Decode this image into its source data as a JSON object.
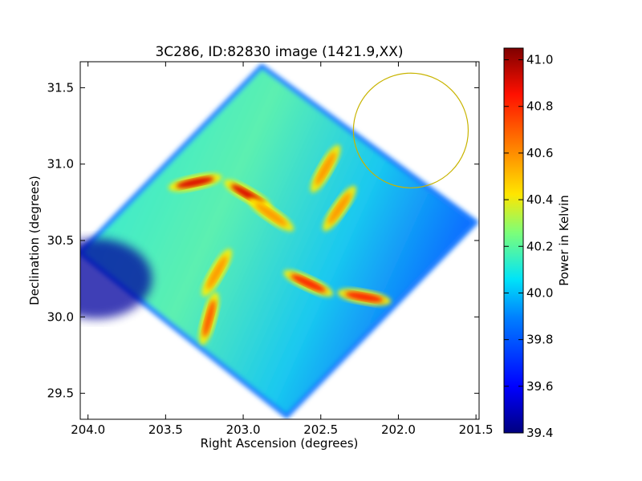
{
  "chart_data": {
    "type": "heatmap",
    "title": "3C286, ID:82830 image (1421.9,XX)",
    "xlabel": "Right Ascension (degrees)",
    "ylabel": "Declination (degrees)",
    "xlim": [
      204.05,
      201.48
    ],
    "ylim": [
      29.33,
      31.67
    ],
    "x_ticks": [
      "204.0",
      "203.5",
      "203.0",
      "202.5",
      "202.0",
      "201.5"
    ],
    "x_tick_values": [
      204.0,
      203.5,
      203.0,
      202.5,
      202.0,
      201.5
    ],
    "y_ticks": [
      "29.5",
      "30.0",
      "30.5",
      "31.0",
      "31.5"
    ],
    "y_tick_values": [
      29.5,
      30.0,
      30.5,
      31.0,
      31.5
    ],
    "colorbar": {
      "label": "Power in Kelvin",
      "ticks": [
        "39.4",
        "39.6",
        "39.8",
        "40.0",
        "40.2",
        "40.4",
        "40.6",
        "40.8",
        "41.0"
      ],
      "tick_values": [
        39.4,
        39.6,
        39.8,
        40.0,
        40.2,
        40.4,
        40.6,
        40.8,
        41.0
      ],
      "range": [
        39.4,
        41.05
      ]
    },
    "footprint": {
      "corners_radec": [
        [
          202.88,
          31.64
        ],
        [
          201.5,
          30.62
        ],
        [
          202.72,
          29.35
        ],
        [
          204.05,
          30.42
        ]
      ],
      "typical_value": 40.0
    },
    "hotspots": [
      {
        "ra": 203.31,
        "dec": 30.88,
        "value": 40.9
      },
      {
        "ra": 202.97,
        "dec": 30.8,
        "value": 40.9
      },
      {
        "ra": 202.82,
        "dec": 30.67,
        "value": 40.6
      },
      {
        "ra": 202.47,
        "dec": 30.97,
        "value": 40.6
      },
      {
        "ra": 202.38,
        "dec": 30.71,
        "value": 40.6
      },
      {
        "ra": 203.17,
        "dec": 30.29,
        "value": 40.6
      },
      {
        "ra": 203.22,
        "dec": 29.99,
        "value": 40.7
      },
      {
        "ra": 202.58,
        "dec": 30.22,
        "value": 40.8
      },
      {
        "ra": 202.22,
        "dec": 30.13,
        "value": 40.8
      }
    ],
    "cold_region": {
      "ra": 203.95,
      "dec": 30.25,
      "value": 39.45
    },
    "circle": {
      "ra": 201.92,
      "dec": 31.22,
      "radius_deg": 0.37,
      "color": "#c8b400"
    },
    "colors": {
      "footprint_base": "#22d8f0",
      "hot": "#cc0000",
      "cold": "#0000a0",
      "circle": "#c8b400"
    }
  }
}
